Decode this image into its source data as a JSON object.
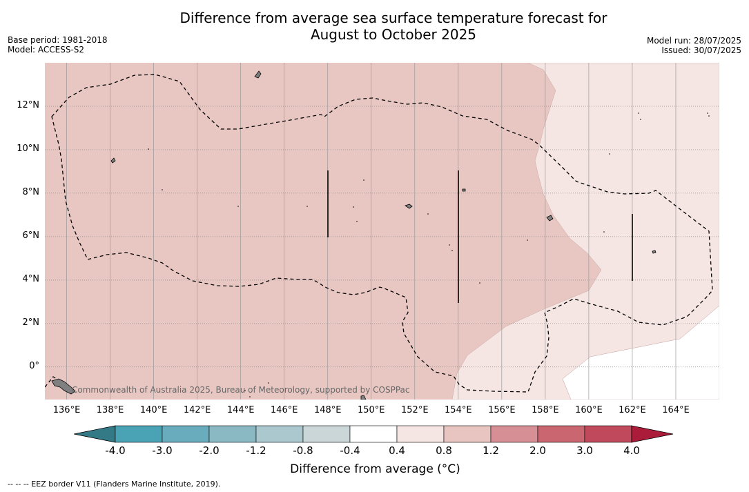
{
  "title_line1": "Difference from average sea surface temperature forecast for",
  "title_line2": "August to October 2025",
  "base_period": "Base period: 1981-2018",
  "model": "Model: ACCESS-S2",
  "model_run": "Model run: 28/07/2025",
  "issued": "Issued: 30/07/2025",
  "copyright": "Commonwealth of Australia 2025, Bureau of Meteorology, supported by COSPPac",
  "colorbar_label": "Difference from average (°C)",
  "footnote": "-- -- -- EEZ border V11 (Flanders Marine Institute, 2019).",
  "map_data": {
    "lon_range": [
      135,
      166
    ],
    "lat_range": [
      -1.5,
      14
    ],
    "lat_ticks": [
      "12°N",
      "10°N",
      "8°N",
      "6°N",
      "4°N",
      "2°N",
      "0°"
    ],
    "lon_ticks": [
      "136°E",
      "138°E",
      "140°E",
      "142°E",
      "144°E",
      "146°E",
      "148°E",
      "150°E",
      "152°E",
      "154°E",
      "156°E",
      "158°E",
      "160°E",
      "162°E",
      "164°E"
    ]
  },
  "colorbar": {
    "ticks": [
      "-4.0",
      "-3.0",
      "-2.0",
      "-1.2",
      "-0.8",
      "-0.4",
      "0.4",
      "0.8",
      "1.2",
      "2.0",
      "3.0",
      "4.0"
    ],
    "colors": [
      "#347a86",
      "#4aa3b4",
      "#69acbd",
      "#8ab9c4",
      "#aac8cd",
      "#cad6d8",
      "#ffffff",
      "#f5e5e3",
      "#e8c5c0",
      "#d78f96",
      "#c96670",
      "#c04a5c",
      "#aa1c3a"
    ]
  },
  "colors": {
    "anomaly_0_8_1_2": "#e8c7c2",
    "anomaly_0_4_0_8": "#f5e6e4",
    "land": "#808080"
  }
}
